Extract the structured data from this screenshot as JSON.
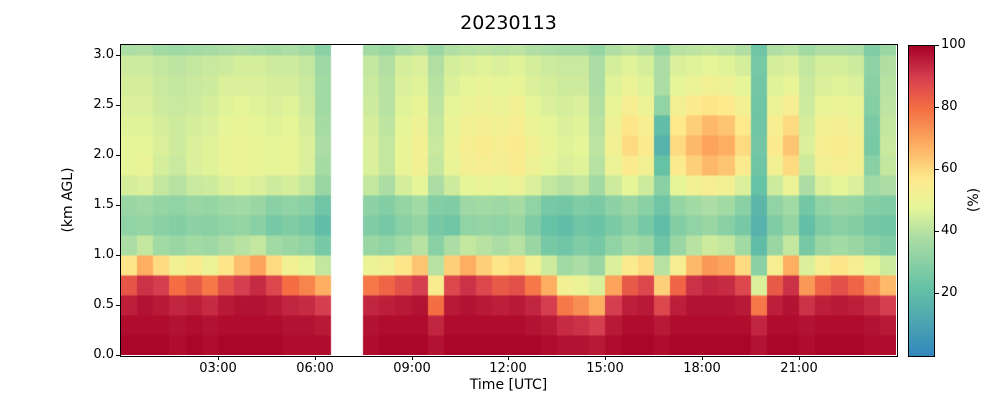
{
  "title": "20230113",
  "chart_data": {
    "type": "heatmap",
    "title": "20230113",
    "xlabel": "Time [UTC]",
    "ylabel": "(km AGL)",
    "colorbar_label": "(%)",
    "x_tick_labels": [
      "03:00",
      "06:00",
      "09:00",
      "12:00",
      "15:00",
      "18:00",
      "21:00"
    ],
    "y_tick_labels": [
      "0.0",
      "0.5",
      "1.0",
      "1.5",
      "2.0",
      "2.5",
      "3.0"
    ],
    "colorbar_tick_labels": [
      "20",
      "40",
      "60",
      "80",
      "100"
    ],
    "x_range_hours": [
      0,
      24
    ],
    "time_start_utc": "00:00",
    "time_step_minutes": 30,
    "y_range_km": [
      0,
      3.1
    ],
    "y_step_km": 0.2,
    "value_range_percent": [
      0,
      100
    ],
    "missing_data_times_utc": [
      "06:30",
      "07:00"
    ],
    "missing_color": "#ffffff",
    "colormap_stops": [
      [
        0,
        "#3288bd"
      ],
      [
        22,
        "#66c2a5"
      ],
      [
        38,
        "#abdda4"
      ],
      [
        48,
        "#e6f598"
      ],
      [
        57,
        "#feea8d"
      ],
      [
        68,
        "#fdae61"
      ],
      [
        80,
        "#f46d43"
      ],
      [
        90,
        "#d53e4f"
      ],
      [
        100,
        "#a50026"
      ]
    ],
    "values_note": "48 half-hour columns from 00:00 to 23:30 UTC; each column lists relative humidity (%) in 0.2 km bins from 0.0 km (first) to 3.1 km (last); null = missing data gap",
    "values": [
      [
        99,
        98,
        95,
        85,
        58,
        38,
        32,
        34,
        45,
        48,
        48,
        47,
        46,
        45,
        44,
        38
      ],
      [
        99,
        98,
        97,
        92,
        68,
        42,
        33,
        35,
        46,
        49,
        48,
        47,
        46,
        45,
        44,
        39
      ],
      [
        99,
        98,
        96,
        90,
        60,
        36,
        30,
        33,
        42,
        45,
        46,
        45,
        44,
        43,
        42,
        36
      ],
      [
        98,
        97,
        94,
        80,
        52,
        34,
        29,
        32,
        40,
        43,
        44,
        44,
        43,
        42,
        41,
        35
      ],
      [
        99,
        98,
        95,
        84,
        55,
        36,
        31,
        34,
        43,
        46,
        46,
        45,
        44,
        43,
        42,
        36
      ],
      [
        98,
        97,
        93,
        78,
        50,
        35,
        30,
        33,
        44,
        47,
        47,
        46,
        45,
        44,
        43,
        37
      ],
      [
        99,
        98,
        96,
        86,
        58,
        38,
        32,
        35,
        46,
        49,
        49,
        48,
        47,
        46,
        44,
        38
      ],
      [
        99,
        98,
        97,
        90,
        65,
        40,
        33,
        36,
        47,
        50,
        50,
        49,
        48,
        46,
        45,
        39
      ],
      [
        99,
        98,
        97,
        93,
        70,
        42,
        30,
        34,
        46,
        49,
        49,
        48,
        47,
        46,
        45,
        38
      ],
      [
        99,
        98,
        96,
        88,
        60,
        36,
        26,
        30,
        44,
        48,
        48,
        47,
        46,
        45,
        44,
        37
      ],
      [
        98,
        97,
        94,
        80,
        52,
        34,
        28,
        32,
        45,
        49,
        49,
        48,
        47,
        45,
        44,
        38
      ],
      [
        98,
        97,
        93,
        76,
        48,
        32,
        26,
        30,
        42,
        46,
        46,
        45,
        44,
        43,
        42,
        36
      ],
      [
        98,
        96,
        90,
        68,
        42,
        26,
        20,
        24,
        34,
        37,
        38,
        37,
        36,
        36,
        35,
        30
      ],
      null,
      null,
      [
        98,
        97,
        94,
        78,
        50,
        34,
        28,
        31,
        42,
        46,
        46,
        45,
        44,
        43,
        42,
        36
      ],
      [
        99,
        98,
        95,
        82,
        52,
        32,
        26,
        29,
        38,
        42,
        42,
        41,
        40,
        40,
        39,
        34
      ],
      [
        99,
        98,
        96,
        86,
        58,
        36,
        30,
        33,
        45,
        49,
        49,
        48,
        47,
        46,
        45,
        38
      ],
      [
        99,
        98,
        97,
        90,
        64,
        40,
        33,
        36,
        48,
        52,
        52,
        51,
        49,
        47,
        46,
        40
      ],
      [
        97,
        94,
        80,
        55,
        40,
        30,
        26,
        29,
        38,
        42,
        43,
        42,
        41,
        40,
        39,
        34
      ],
      [
        99,
        98,
        96,
        88,
        62,
        38,
        24,
        28,
        44,
        49,
        50,
        49,
        48,
        46,
        45,
        39
      ],
      [
        99,
        98,
        97,
        92,
        68,
        42,
        32,
        35,
        48,
        53,
        54,
        52,
        50,
        48,
        46,
        40
      ],
      [
        99,
        98,
        96,
        88,
        62,
        40,
        33,
        36,
        49,
        54,
        55,
        53,
        51,
        49,
        47,
        41
      ],
      [
        99,
        98,
        95,
        84,
        58,
        38,
        32,
        35,
        48,
        53,
        54,
        52,
        50,
        48,
        46,
        40
      ],
      [
        99,
        98,
        96,
        86,
        60,
        40,
        34,
        37,
        50,
        55,
        56,
        54,
        52,
        49,
        47,
        41
      ],
      [
        99,
        97,
        94,
        78,
        52,
        34,
        28,
        32,
        46,
        51,
        52,
        50,
        48,
        46,
        45,
        39
      ],
      [
        98,
        96,
        90,
        68,
        44,
        26,
        22,
        26,
        42,
        48,
        49,
        48,
        46,
        45,
        44,
        38
      ],
      [
        97,
        93,
        78,
        52,
        36,
        24,
        20,
        25,
        40,
        46,
        47,
        46,
        45,
        44,
        43,
        37
      ],
      [
        97,
        92,
        74,
        50,
        38,
        28,
        24,
        28,
        42,
        47,
        48,
        47,
        46,
        44,
        43,
        37
      ],
      [
        96,
        90,
        68,
        46,
        34,
        26,
        23,
        27,
        36,
        40,
        41,
        40,
        39,
        38,
        38,
        33
      ],
      [
        98,
        96,
        90,
        70,
        46,
        32,
        27,
        31,
        44,
        50,
        52,
        51,
        49,
        47,
        45,
        39
      ],
      [
        99,
        98,
        95,
        84,
        56,
        36,
        30,
        34,
        48,
        56,
        60,
        58,
        54,
        50,
        47,
        41
      ],
      [
        99,
        98,
        96,
        88,
        60,
        34,
        26,
        30,
        44,
        52,
        56,
        54,
        50,
        47,
        45,
        39
      ],
      [
        98,
        96,
        88,
        62,
        40,
        24,
        20,
        24,
        30,
        22,
        16,
        20,
        32,
        38,
        38,
        33
      ],
      [
        99,
        98,
        95,
        82,
        54,
        34,
        29,
        33,
        48,
        56,
        60,
        57,
        52,
        48,
        46,
        40
      ],
      [
        99,
        98,
        97,
        92,
        66,
        40,
        32,
        36,
        52,
        62,
        66,
        62,
        56,
        50,
        47,
        41
      ],
      [
        99,
        98,
        97,
        94,
        72,
        44,
        34,
        38,
        54,
        66,
        70,
        66,
        58,
        52,
        48,
        42
      ],
      [
        99,
        98,
        97,
        93,
        70,
        42,
        30,
        36,
        52,
        64,
        68,
        64,
        57,
        51,
        47,
        41
      ],
      [
        99,
        98,
        96,
        88,
        60,
        36,
        26,
        30,
        46,
        56,
        60,
        57,
        52,
        48,
        45,
        39
      ],
      [
        97,
        94,
        78,
        46,
        30,
        20,
        16,
        18,
        22,
        24,
        25,
        24,
        24,
        25,
        26,
        24
      ],
      [
        99,
        98,
        95,
        84,
        54,
        34,
        28,
        32,
        44,
        52,
        56,
        54,
        50,
        47,
        45,
        39
      ],
      [
        99,
        98,
        97,
        92,
        68,
        42,
        33,
        36,
        50,
        60,
        64,
        60,
        54,
        49,
        46,
        40
      ],
      [
        98,
        97,
        92,
        72,
        46,
        26,
        21,
        25,
        38,
        44,
        46,
        45,
        44,
        43,
        42,
        36
      ],
      [
        99,
        98,
        95,
        82,
        54,
        34,
        28,
        32,
        46,
        52,
        54,
        52,
        49,
        46,
        45,
        39
      ],
      [
        99,
        98,
        96,
        86,
        58,
        36,
        30,
        34,
        48,
        54,
        55,
        53,
        50,
        47,
        45,
        39
      ],
      [
        99,
        98,
        95,
        82,
        54,
        34,
        29,
        33,
        46,
        52,
        53,
        51,
        49,
        46,
        44,
        38
      ],
      [
        98,
        97,
        93,
        74,
        48,
        30,
        25,
        29,
        36,
        30,
        26,
        27,
        29,
        30,
        31,
        28
      ],
      [
        98,
        96,
        90,
        66,
        44,
        28,
        24,
        28,
        38,
        42,
        43,
        42,
        41,
        40,
        39,
        34
      ]
    ]
  }
}
